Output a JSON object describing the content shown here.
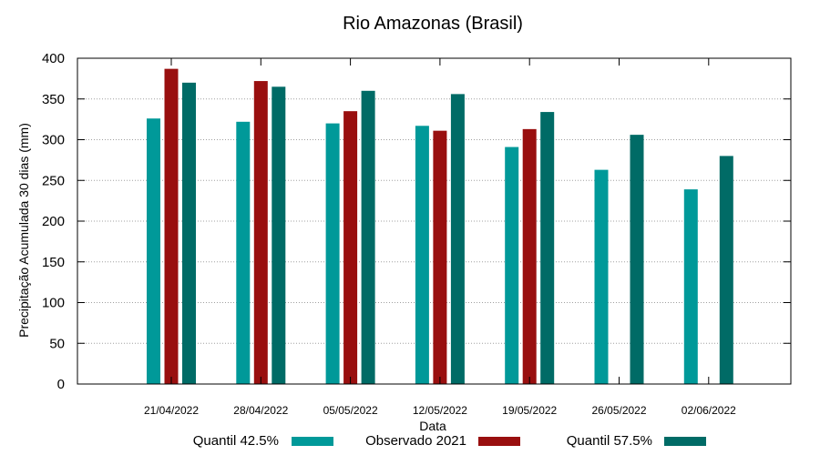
{
  "chart_data": {
    "type": "bar",
    "title": "Rio Amazonas (Brasil)",
    "xlabel": "Data",
    "ylabel": "Precipitação Acumulada 30 dias (mm)",
    "ylim": [
      0,
      400
    ],
    "yticks": [
      0,
      50,
      100,
      150,
      200,
      250,
      300,
      350,
      400
    ],
    "grid": true,
    "legend_position": "bottom",
    "categories": [
      "21/04/2022",
      "28/04/2022",
      "05/05/2022",
      "12/05/2022",
      "19/05/2022",
      "26/05/2022",
      "02/06/2022"
    ],
    "series": [
      {
        "name": "Quantil 42.5%",
        "color": "#009999",
        "values": [
          326,
          322,
          320,
          317,
          291,
          263,
          239
        ]
      },
      {
        "name": "Observado 2021",
        "color": "#990F0F",
        "values": [
          387,
          372,
          335,
          311,
          313,
          null,
          null
        ]
      },
      {
        "name": "Quantil 57.5%",
        "color": "#006B66",
        "values": [
          370,
          365,
          360,
          356,
          334,
          306,
          280
        ]
      }
    ]
  }
}
